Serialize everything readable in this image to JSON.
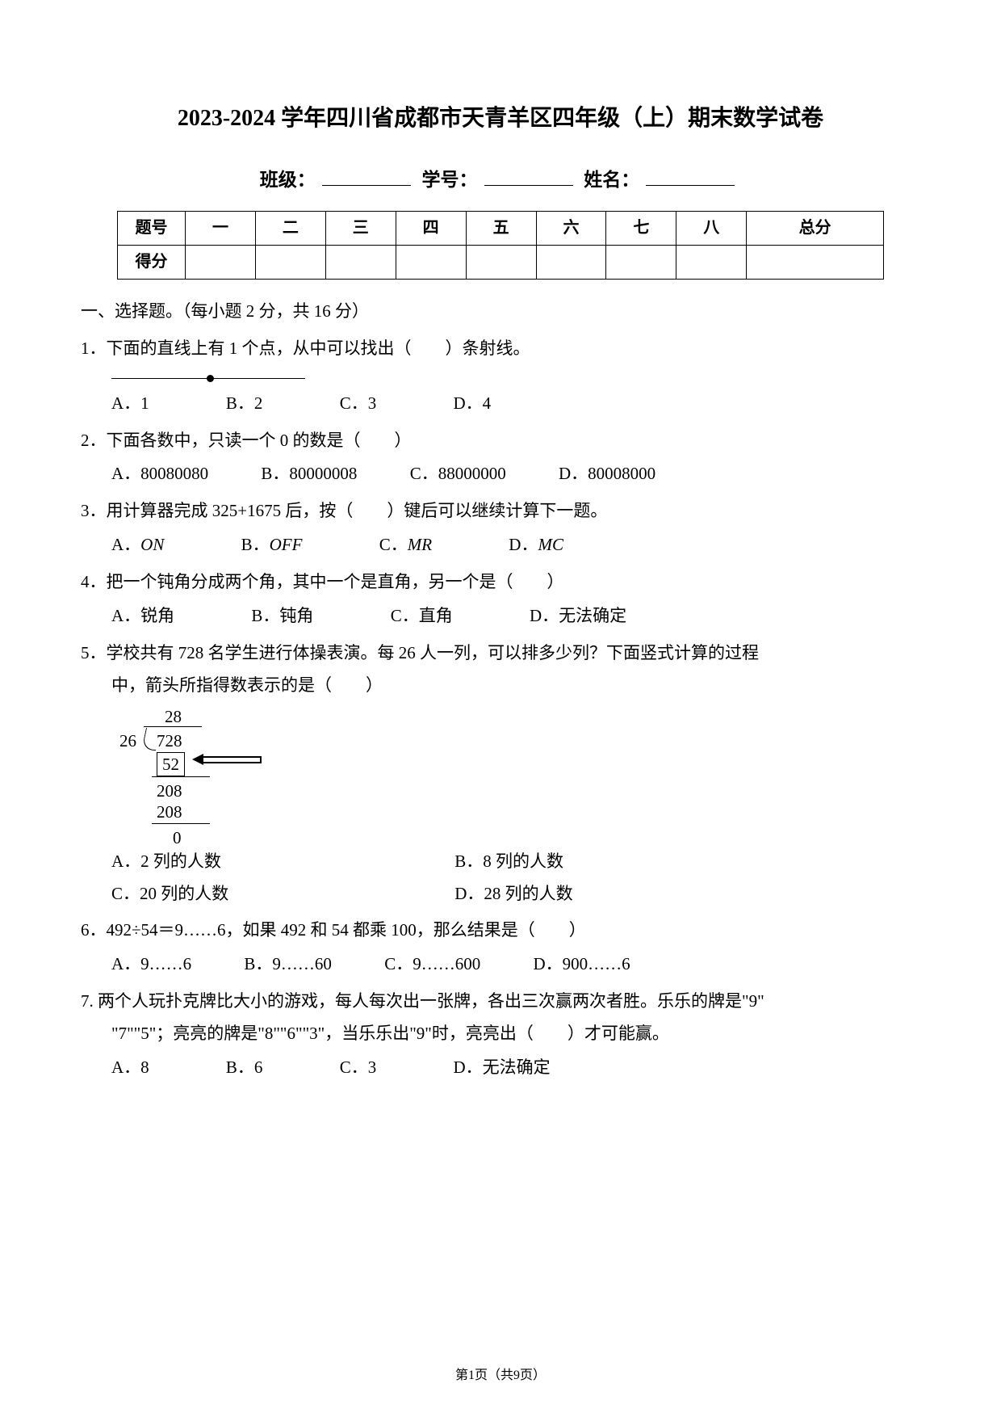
{
  "title": "2023-2024 学年四川省成都市天青羊区四年级（上）期末数学试卷",
  "header": {
    "class_label": "班级：",
    "id_label": "学号：",
    "name_label": "姓名："
  },
  "score_table": {
    "row1": [
      "题号",
      "一",
      "二",
      "三",
      "四",
      "五",
      "六",
      "七",
      "八",
      "总分"
    ],
    "row2_label": "得分"
  },
  "section1": "一、选择题。（每小题 2 分，共 16 分）",
  "q1": {
    "stem": "1．下面的直线上有 1 个点，从中可以找出（　　）条射线。",
    "opts": {
      "a": "A．1",
      "b": "B．2",
      "c": "C．3",
      "d": "D．4"
    }
  },
  "q2": {
    "stem": "2．下面各数中，只读一个 0 的数是（　　）",
    "opts": {
      "a": "A．80080080",
      "b": "B．80000008",
      "c": "C．88000000",
      "d": "D．80008000"
    }
  },
  "q3": {
    "stem": "3．用计算器完成 325+1675 后，按（　　）键后可以继续计算下一题。",
    "opts": {
      "a": "A．ON",
      "b": "B．OFF",
      "c": "C．MR",
      "d": "D．MC"
    }
  },
  "q4": {
    "stem": "4．把一个钝角分成两个角，其中一个是直角，另一个是（　　）",
    "opts": {
      "a": "A．锐角",
      "b": "B．钝角",
      "c": "C．直角",
      "d": "D．无法确定"
    }
  },
  "q5": {
    "stem1": "5．学校共有 728 名学生进行体操表演。每 26 人一列，可以排多少列？下面竖式计算的过程",
    "stem2": "中，箭头所指得数表示的是（　　）",
    "division": {
      "quotient": "28",
      "divisor": "26",
      "dividend": "728",
      "sub1": "52",
      "rem1": "208",
      "sub2": "208",
      "zero": "0"
    },
    "opts": {
      "a": "A．2 列的人数",
      "b": "B．8 列的人数",
      "c": "C．20 列的人数",
      "d": "D．28 列的人数"
    }
  },
  "q6": {
    "stem": "6．492÷54＝9……6，如果 492 和 54 都乘 100，那么结果是（　　）",
    "opts": {
      "a": "A．9……6",
      "b": "B．9……60",
      "c": "C．9……600",
      "d": "D．900……6"
    }
  },
  "q7": {
    "stem1": "7. 两个人玩扑克牌比大小的游戏，每人每次出一张牌，各出三次赢两次者胜。乐乐的牌是\"9\"",
    "stem2": "\"7\"\"5\"；亮亮的牌是\"8\"\"6\"\"3\"，当乐乐出\"9\"时，亮亮出（　　）才可能赢。",
    "opts": {
      "a": "A．8",
      "b": "B．6",
      "c": "C．3",
      "d": "D．无法确定"
    }
  },
  "footer": "第1页（共9页）"
}
